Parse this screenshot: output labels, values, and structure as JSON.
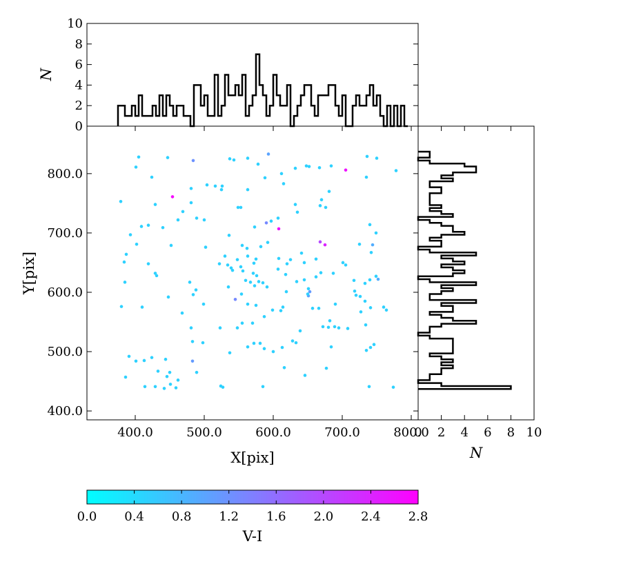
{
  "chart_data": [
    {
      "type": "scatter",
      "xlabel": "X[pix]",
      "ylabel": "Y[pix]",
      "xlim": [
        330,
        810
      ],
      "ylim": [
        385,
        880
      ],
      "xticks": [
        "400.0",
        "500.0",
        "600.0",
        "700.0",
        "800.0"
      ],
      "yticks": [
        "400.0",
        "500.0",
        "600.0",
        "700.0",
        "800.0"
      ],
      "color_by": "V-I",
      "points": [
        [
          405,
          828,
          0.5
        ],
        [
          447,
          827,
          0.5
        ],
        [
          484,
          822,
          1.2
        ],
        [
          537,
          825,
          0.5
        ],
        [
          543,
          823,
          0.5
        ],
        [
          563,
          826,
          0.5
        ],
        [
          593,
          833,
          1.0
        ],
        [
          578,
          816,
          0.5
        ],
        [
          736,
          829,
          0.5
        ],
        [
          750,
          826,
          0.5
        ],
        [
          401,
          811,
          0.5
        ],
        [
          424,
          794,
          0.5
        ],
        [
          481,
          775,
          0.5
        ],
        [
          504,
          781,
          0.5
        ],
        [
          516,
          779,
          0.5
        ],
        [
          525,
          773,
          0.5
        ],
        [
          526,
          779,
          0.5
        ],
        [
          563,
          773,
          0.5
        ],
        [
          588,
          793,
          0.5
        ],
        [
          612,
          800,
          0.5
        ],
        [
          615,
          783,
          0.5
        ],
        [
          632,
          809,
          0.5
        ],
        [
          648,
          813,
          0.5
        ],
        [
          652,
          812,
          0.5
        ],
        [
          667,
          810,
          0.5
        ],
        [
          684,
          813,
          0.5
        ],
        [
          705,
          806,
          2.6
        ],
        [
          735,
          794,
          0.5
        ],
        [
          778,
          805,
          0.5
        ],
        [
          379,
          753,
          0.5
        ],
        [
          454,
          761,
          2.7
        ],
        [
          429,
          748,
          0.5
        ],
        [
          469,
          736,
          0.5
        ],
        [
          481,
          751,
          0.5
        ],
        [
          549,
          743,
          0.5
        ],
        [
          553,
          743,
          0.5
        ],
        [
          597,
          720,
          0.5
        ],
        [
          632,
          748,
          0.5
        ],
        [
          635,
          735,
          0.5
        ],
        [
          668,
          746,
          0.5
        ],
        [
          670,
          756,
          0.5
        ],
        [
          676,
          743,
          0.5
        ],
        [
          681,
          770,
          0.5
        ],
        [
          409,
          711,
          0.5
        ],
        [
          419,
          713,
          0.5
        ],
        [
          440,
          709,
          0.5
        ],
        [
          462,
          722,
          0.5
        ],
        [
          489,
          725,
          0.5
        ],
        [
          500,
          722,
          0.5
        ],
        [
          573,
          710,
          0.5
        ],
        [
          590,
          717,
          1.3
        ],
        [
          607,
          725,
          0.5
        ],
        [
          608,
          707,
          2.6
        ],
        [
          744,
          680,
          0.9
        ],
        [
          725,
          681,
          0.5
        ],
        [
          740,
          714,
          0.5
        ],
        [
          749,
          700,
          0.5
        ],
        [
          393,
          697,
          0.5
        ],
        [
          402,
          681,
          0.5
        ],
        [
          384,
          651,
          0.5
        ],
        [
          387,
          664,
          0.5
        ],
        [
          452,
          679,
          0.5
        ],
        [
          502,
          676,
          0.5
        ],
        [
          522,
          648,
          0.5
        ],
        [
          530,
          661,
          0.5
        ],
        [
          536,
          696,
          0.5
        ],
        [
          548,
          655,
          0.5
        ],
        [
          555,
          679,
          0.5
        ],
        [
          562,
          674,
          0.5
        ],
        [
          563,
          661,
          0.5
        ],
        [
          572,
          649,
          0.5
        ],
        [
          575,
          656,
          0.5
        ],
        [
          582,
          677,
          0.5
        ],
        [
          592,
          684,
          0.5
        ],
        [
          608,
          657,
          0.5
        ],
        [
          620,
          648,
          0.5
        ],
        [
          625,
          655,
          0.5
        ],
        [
          641,
          666,
          0.5
        ],
        [
          645,
          650,
          0.5
        ],
        [
          662,
          656,
          0.5
        ],
        [
          668,
          685,
          2.0
        ],
        [
          675,
          680,
          2.4
        ],
        [
          701,
          650,
          0.5
        ],
        [
          705,
          646,
          0.5
        ],
        [
          742,
          667,
          0.5
        ],
        [
          385,
          617,
          0.5
        ],
        [
          419,
          648,
          0.5
        ],
        [
          429,
          632,
          0.5
        ],
        [
          431,
          628,
          0.5
        ],
        [
          479,
          617,
          0.5
        ],
        [
          488,
          604,
          0.5
        ],
        [
          534,
          646,
          0.5
        ],
        [
          535,
          609,
          0.5
        ],
        [
          539,
          641,
          0.5
        ],
        [
          541,
          637,
          0.5
        ],
        [
          553,
          643,
          0.5
        ],
        [
          556,
          636,
          0.5
        ],
        [
          560,
          620,
          0.5
        ],
        [
          567,
          617,
          0.5
        ],
        [
          571,
          632,
          0.5
        ],
        [
          573,
          611,
          0.5
        ],
        [
          576,
          628,
          0.5
        ],
        [
          579,
          618,
          0.5
        ],
        [
          585,
          616,
          0.5
        ],
        [
          591,
          609,
          0.5
        ],
        [
          607,
          639,
          0.5
        ],
        [
          618,
          630,
          0.5
        ],
        [
          634,
          618,
          0.5
        ],
        [
          645,
          621,
          0.5
        ],
        [
          651,
          606,
          0.5
        ],
        [
          653,
          601,
          1.1
        ],
        [
          651,
          594,
          1.0
        ],
        [
          662,
          626,
          0.5
        ],
        [
          669,
          633,
          0.5
        ],
        [
          687,
          632,
          0.5
        ],
        [
          717,
          620,
          0.5
        ],
        [
          733,
          615,
          0.5
        ],
        [
          740,
          621,
          0.5
        ],
        [
          752,
          622,
          0.9
        ],
        [
          749,
          627,
          0.5
        ],
        [
          380,
          576,
          0.5
        ],
        [
          410,
          575,
          0.5
        ],
        [
          448,
          592,
          0.5
        ],
        [
          484,
          596,
          0.5
        ],
        [
          499,
          580,
          0.5
        ],
        [
          545,
          588,
          1.3
        ],
        [
          554,
          597,
          0.5
        ],
        [
          563,
          580,
          0.5
        ],
        [
          575,
          578,
          0.5
        ],
        [
          599,
          570,
          0.5
        ],
        [
          611,
          569,
          0.5
        ],
        [
          614,
          575,
          0.5
        ],
        [
          619,
          601,
          0.5
        ],
        [
          650,
          597,
          0.5
        ],
        [
          657,
          573,
          0.5
        ],
        [
          666,
          573,
          0.5
        ],
        [
          690,
          580,
          0.5
        ],
        [
          718,
          602,
          0.5
        ],
        [
          726,
          593,
          0.5
        ],
        [
          733,
          585,
          0.5
        ],
        [
          741,
          574,
          0.5
        ],
        [
          760,
          575,
          0.5
        ],
        [
          764,
          570,
          0.5
        ],
        [
          720,
          595,
          0.5
        ],
        [
          468,
          565,
          0.5
        ],
        [
          481,
          540,
          0.5
        ],
        [
          523,
          540,
          0.5
        ],
        [
          548,
          540,
          0.5
        ],
        [
          555,
          548,
          0.5
        ],
        [
          570,
          548,
          0.5
        ],
        [
          587,
          559,
          0.5
        ],
        [
          639,
          535,
          0.5
        ],
        [
          672,
          542,
          0.5
        ],
        [
          680,
          541,
          0.5
        ],
        [
          682,
          552,
          0.5
        ],
        [
          689,
          542,
          0.5
        ],
        [
          695,
          540,
          0.5
        ],
        [
          708,
          539,
          0.5
        ],
        [
          727,
          567,
          0.5
        ],
        [
          734,
          545,
          0.5
        ],
        [
          391,
          492,
          0.5
        ],
        [
          401,
          484,
          0.5
        ],
        [
          413,
          485,
          0.5
        ],
        [
          424,
          490,
          0.5
        ],
        [
          444,
          487,
          0.5
        ],
        [
          483,
          517,
          0.5
        ],
        [
          498,
          515,
          0.5
        ],
        [
          483,
          484,
          1.1
        ],
        [
          489,
          465,
          0.5
        ],
        [
          537,
          498,
          0.5
        ],
        [
          563,
          508,
          0.5
        ],
        [
          572,
          514,
          0.5
        ],
        [
          581,
          514,
          0.5
        ],
        [
          587,
          505,
          0.5
        ],
        [
          600,
          500,
          0.5
        ],
        [
          613,
          507,
          0.5
        ],
        [
          628,
          518,
          0.5
        ],
        [
          633,
          515,
          0.5
        ],
        [
          684,
          508,
          0.5
        ],
        [
          735,
          502,
          0.5
        ],
        [
          746,
          512,
          0.5
        ],
        [
          741,
          507,
          0.5
        ],
        [
          616,
          473,
          0.5
        ],
        [
          646,
          460,
          0.5
        ],
        [
          677,
          472,
          0.5
        ],
        [
          386,
          457,
          0.5
        ],
        [
          414,
          441,
          0.5
        ],
        [
          429,
          441,
          0.5
        ],
        [
          433,
          467,
          0.5
        ],
        [
          446,
          458,
          0.5
        ],
        [
          442,
          438,
          0.5
        ],
        [
          451,
          445,
          0.5
        ],
        [
          459,
          439,
          0.5
        ],
        [
          462,
          452,
          0.5
        ],
        [
          450,
          465,
          0.5
        ],
        [
          524,
          442,
          0.5
        ],
        [
          527,
          440,
          0.5
        ],
        [
          585,
          441,
          0.5
        ],
        [
          739,
          441,
          0.5
        ],
        [
          774,
          440,
          0.5
        ]
      ]
    },
    {
      "type": "histogram",
      "orientation": "vertical",
      "variable": "X",
      "ylabel": "N",
      "ylim": [
        0,
        10
      ],
      "yticks": [
        "0",
        "2",
        "4",
        "6",
        "8",
        "10"
      ],
      "bin_start": 375,
      "bin_width": 5,
      "counts": [
        2,
        2,
        1,
        1,
        2,
        1,
        3,
        1,
        1,
        1,
        2,
        1,
        3,
        1,
        3,
        2,
        1,
        2,
        2,
        1,
        1,
        0,
        4,
        4,
        2,
        3,
        1,
        1,
        5,
        1,
        2,
        5,
        3,
        3,
        4,
        3,
        5,
        1,
        2,
        3,
        7,
        4,
        3,
        1,
        2,
        5,
        3,
        2,
        2,
        4,
        0,
        1,
        2,
        3,
        4,
        4,
        2,
        1,
        3,
        3,
        3,
        4,
        4,
        2,
        1,
        3,
        0,
        0,
        2,
        3,
        2,
        2,
        3,
        4,
        2,
        3,
        1,
        0,
        2,
        0,
        2,
        0,
        2,
        0
      ]
    },
    {
      "type": "histogram",
      "orientation": "horizontal",
      "variable": "Y",
      "xlabel": "N",
      "xlim": [
        0,
        10
      ],
      "xticks": [
        "0",
        "2",
        "4",
        "6",
        "8",
        "10"
      ],
      "bin_start": 437,
      "bin_width": 5,
      "counts": [
        8,
        2,
        0,
        1,
        1,
        2,
        2,
        3,
        2,
        3,
        2,
        1,
        3,
        3,
        3,
        3,
        3,
        1,
        0,
        1,
        1,
        2,
        5,
        3,
        2,
        1,
        3,
        3,
        2,
        5,
        1,
        1,
        2,
        3,
        2,
        5,
        1,
        0,
        3,
        4,
        3,
        2,
        4,
        3,
        2,
        5,
        1,
        0,
        2,
        2,
        1,
        2,
        4,
        3,
        3,
        2,
        1,
        0,
        3,
        2,
        1,
        2,
        1,
        1,
        1,
        1,
        2,
        2,
        1,
        1,
        3,
        2,
        3,
        5,
        5,
        4,
        1,
        0,
        1,
        1
      ]
    },
    {
      "type": "colorbar",
      "label": "V-I",
      "range": [
        0.0,
        2.8
      ],
      "ticks": [
        "0.0",
        "0.4",
        "0.8",
        "1.2",
        "1.6",
        "2.0",
        "2.4",
        "2.8"
      ],
      "colormap": [
        "#00ffff",
        "#ff00ff"
      ]
    }
  ]
}
